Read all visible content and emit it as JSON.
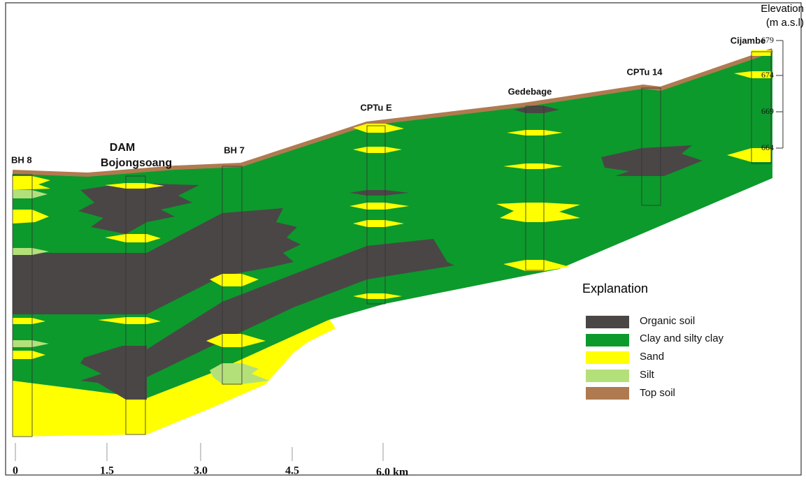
{
  "boreholes": [
    "BH 8",
    "DAM",
    "Bojongsoang",
    "BH 7",
    "CPTu E",
    "Gedebage",
    "CPTu 14",
    "Cijambe"
  ],
  "elevation_axis": {
    "title": [
      "Elevation",
      "(m a.s.l)"
    ],
    "ticks": [
      "679",
      "674",
      "669",
      "664"
    ]
  },
  "distance_axis": {
    "ticks": [
      "0",
      "1.5",
      "3.0",
      "4.5",
      "6.0 km"
    ]
  },
  "legend": {
    "title": "Explanation",
    "items": [
      "Organic soil",
      "Clay and silty clay",
      "Sand",
      "Silt",
      "Top soil"
    ]
  }
}
